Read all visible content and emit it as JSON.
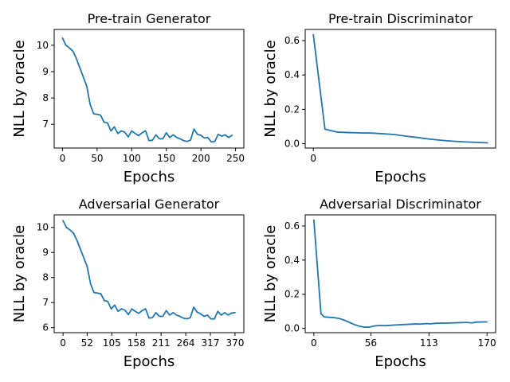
{
  "colors": {
    "series": "#1f77b4",
    "axis": "#000000",
    "background": "#ffffff"
  },
  "chart_data": [
    {
      "type": "line",
      "title": "Pre-train Generator",
      "xlabel": "Epochs",
      "ylabel": "NLL by oracle",
      "xlim": [
        -12,
        262
      ],
      "ylim": [
        6.1,
        10.6
      ],
      "xticks": [
        0,
        50,
        100,
        150,
        200,
        250
      ],
      "xtick_labels": [
        "0",
        "50",
        "100",
        "150",
        "200",
        "250"
      ],
      "yticks": [
        7,
        8,
        9,
        10
      ],
      "ytick_labels": [
        "7",
        "8",
        "9",
        "10"
      ],
      "grid": false,
      "series": [
        {
          "x": [
            0,
            5,
            10,
            15,
            20,
            25,
            30,
            35,
            40,
            45,
            50,
            55,
            60,
            65,
            70,
            75,
            80,
            85,
            90,
            95,
            100,
            105,
            110,
            115,
            120,
            125,
            130,
            135,
            140,
            145,
            150,
            155,
            160,
            165,
            170,
            175,
            180,
            185,
            190,
            195,
            200,
            205,
            210,
            215,
            220,
            225,
            230,
            235,
            240,
            245
          ],
          "y": [
            10.27,
            10.0,
            9.9,
            9.78,
            9.5,
            9.15,
            8.8,
            8.45,
            7.75,
            7.4,
            7.38,
            7.35,
            7.08,
            7.05,
            6.75,
            6.9,
            6.65,
            6.75,
            6.7,
            6.52,
            6.75,
            6.65,
            6.57,
            6.68,
            6.75,
            6.38,
            6.4,
            6.6,
            6.45,
            6.45,
            6.68,
            6.5,
            6.6,
            6.5,
            6.45,
            6.38,
            6.35,
            6.4,
            6.82,
            6.62,
            6.58,
            6.48,
            6.5,
            6.33,
            6.35,
            6.62,
            6.55,
            6.6,
            6.5,
            6.58
          ]
        }
      ]
    },
    {
      "type": "line",
      "title": "Pre-train Discriminator",
      "xlabel": "Epochs",
      "ylabel": "NLL by oracle",
      "xlim": [
        -0.7,
        15.7
      ],
      "ylim": [
        -0.025,
        0.665
      ],
      "xticks": [
        0
      ],
      "xtick_labels": [
        "0"
      ],
      "yticks": [
        0.0,
        0.2,
        0.4,
        0.6
      ],
      "ytick_labels": [
        "0.0",
        "0.2",
        "0.4",
        "0.6"
      ],
      "grid": false,
      "series": [
        {
          "x": [
            0,
            1,
            2,
            3,
            4,
            5,
            6,
            7,
            8,
            9,
            10,
            11,
            12,
            13,
            14,
            15
          ],
          "y": [
            0.635,
            0.085,
            0.068,
            0.065,
            0.063,
            0.062,
            0.058,
            0.053,
            0.044,
            0.036,
            0.027,
            0.02,
            0.015,
            0.011,
            0.008,
            0.005
          ]
        }
      ]
    },
    {
      "type": "line",
      "title": "Adversarial Generator",
      "xlabel": "Epochs",
      "ylabel": "NLL by oracle",
      "xlim": [
        -19,
        389
      ],
      "ylim": [
        5.8,
        10.5
      ],
      "xticks": [
        0,
        52,
        105,
        158,
        211,
        264,
        317,
        370
      ],
      "xtick_labels": [
        "0",
        "52",
        "105",
        "158",
        "211",
        "264",
        "317",
        "370"
      ],
      "yticks": [
        6,
        7,
        8,
        9,
        10
      ],
      "ytick_labels": [
        "6",
        "7",
        "8",
        "9",
        "10"
      ],
      "grid": false,
      "series": [
        {
          "x": [
            0,
            7.4,
            14.8,
            22.2,
            29.6,
            37,
            44.4,
            51.8,
            59.2,
            66.6,
            74,
            81.4,
            88.8,
            96.2,
            103.6,
            111,
            118.4,
            125.8,
            133.2,
            140.6,
            148,
            155.4,
            162.8,
            170.2,
            177.6,
            185,
            192.4,
            199.8,
            207.2,
            214.6,
            222,
            229.4,
            236.8,
            244.2,
            251.6,
            259,
            266.4,
            273.8,
            281.2,
            288.6,
            296,
            303.4,
            310.8,
            318.2,
            325.6,
            333,
            340.4,
            347.8,
            355.2,
            362.6,
            370
          ],
          "y": [
            10.27,
            10.0,
            9.9,
            9.78,
            9.5,
            9.15,
            8.8,
            8.45,
            7.75,
            7.4,
            7.38,
            7.35,
            7.08,
            7.05,
            6.75,
            6.9,
            6.65,
            6.75,
            6.7,
            6.52,
            6.75,
            6.65,
            6.57,
            6.68,
            6.75,
            6.38,
            6.4,
            6.6,
            6.45,
            6.45,
            6.68,
            6.5,
            6.6,
            6.5,
            6.45,
            6.38,
            6.35,
            6.4,
            6.82,
            6.62,
            6.55,
            6.45,
            6.5,
            6.35,
            6.35,
            6.65,
            6.5,
            6.6,
            6.5,
            6.58,
            6.6
          ]
        }
      ]
    },
    {
      "type": "line",
      "title": "Adversarial Discriminator",
      "xlabel": "Epochs",
      "ylabel": "NLL by oracle",
      "xlim": [
        -8.5,
        178.5
      ],
      "ylim": [
        -0.025,
        0.665
      ],
      "xticks": [
        0,
        56,
        113,
        170
      ],
      "xtick_labels": [
        "0",
        "56",
        "113",
        "170"
      ],
      "yticks": [
        0.0,
        0.2,
        0.4,
        0.6
      ],
      "ytick_labels": [
        "0.0",
        "0.2",
        "0.4",
        "0.6"
      ],
      "grid": false,
      "series": [
        {
          "x": [
            0,
            7,
            10,
            15,
            20,
            25,
            30,
            35,
            40,
            45,
            50,
            55,
            60,
            65,
            70,
            80,
            90,
            100,
            105,
            110,
            115,
            120,
            130,
            140,
            150,
            155,
            160,
            170
          ],
          "y": [
            0.635,
            0.085,
            0.068,
            0.065,
            0.063,
            0.058,
            0.048,
            0.035,
            0.022,
            0.012,
            0.007,
            0.008,
            0.015,
            0.017,
            0.016,
            0.02,
            0.023,
            0.026,
            0.025,
            0.028,
            0.027,
            0.03,
            0.031,
            0.033,
            0.035,
            0.032,
            0.037,
            0.038
          ]
        }
      ]
    }
  ]
}
